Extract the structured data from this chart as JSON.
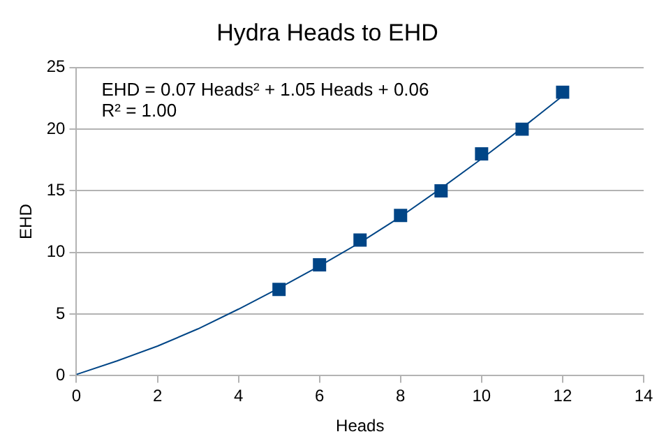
{
  "chart_data": {
    "type": "scatter",
    "title": "Hydra Heads to EHD",
    "xlabel": "Heads",
    "ylabel": "EHD",
    "xlim": [
      0,
      14
    ],
    "xticks": [
      0,
      2,
      4,
      6,
      8,
      10,
      12,
      14
    ],
    "ylim": [
      0,
      25
    ],
    "yticks": [
      0,
      5,
      10,
      15,
      20,
      25
    ],
    "grid": "y",
    "legend": false,
    "annotations": [
      "EHD = 0.07 Heads² + 1.05 Heads + 0.06",
      "R² = 1.00"
    ],
    "series": [
      {
        "type": "scatter",
        "color": "#004586",
        "marker": "square",
        "x": [
          5,
          6,
          7,
          8,
          9,
          10,
          11,
          12
        ],
        "values": [
          7,
          9,
          11,
          13,
          15,
          18,
          20,
          23
        ]
      },
      {
        "type": "line",
        "color": "#004586",
        "marker": "none",
        "line_style": "solid",
        "x": [
          0,
          1,
          2,
          3,
          4,
          5,
          6,
          7,
          8,
          9,
          10,
          11,
          12
        ],
        "values": [
          0.1,
          1.2,
          2.4,
          3.8,
          5.4,
          7.1,
          8.9,
          10.8,
          12.9,
          15.2,
          17.6,
          20.1,
          22.7
        ]
      }
    ]
  }
}
